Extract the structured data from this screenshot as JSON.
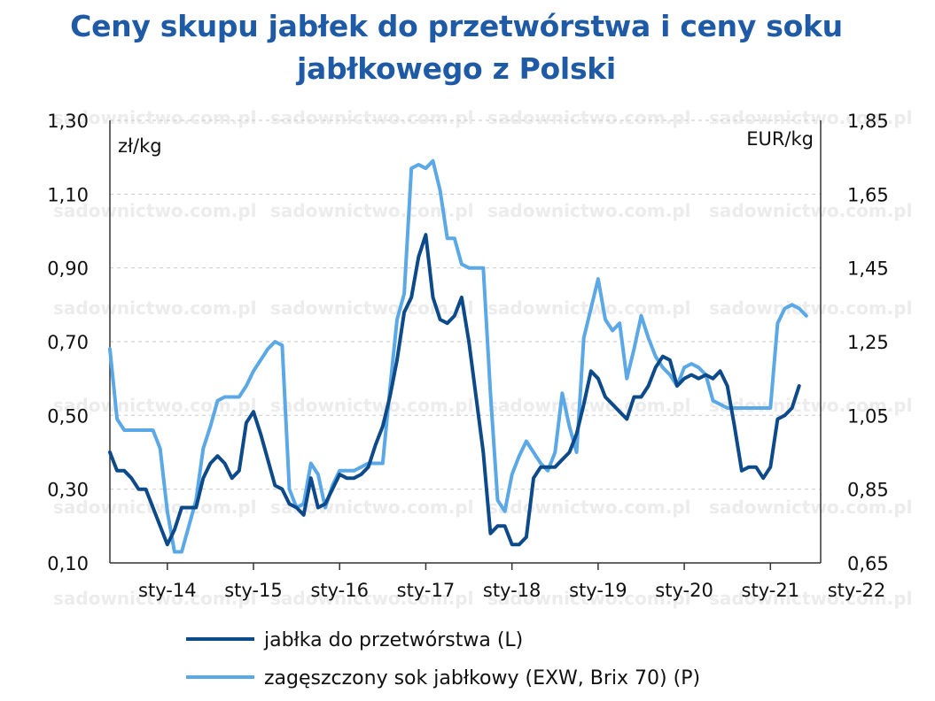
{
  "colors": {
    "title": "#1f5aa6",
    "apples": "#0d4a8a",
    "juice": "#5aa8e6",
    "axis": "#333333"
  },
  "chart_data": {
    "type": "line",
    "title": "Ceny skupu jabłek do przetwórstwa i ceny soku jabłkowego z Polski",
    "title_lines": [
      "Ceny skupu jabłek do przetwórstwa i ceny soku",
      "jabłkowego z Polski"
    ],
    "left_unit": "zł/kg",
    "right_unit": "EUR/kg",
    "ylim_left": [
      0.1,
      1.3
    ],
    "ylim_right": [
      0.65,
      1.85
    ],
    "y_ticks_left": [
      "1,30",
      "1,10",
      "0,90",
      "0,70",
      "0,50",
      "0,30",
      "0,10"
    ],
    "y_ticks_right": [
      "1,85",
      "1,65",
      "1,45",
      "1,25",
      "1,05",
      "0,85",
      "0,65"
    ],
    "x_ticks": [
      "sty-14",
      "sty-15",
      "sty-16",
      "sty-17",
      "sty-18",
      "sty-19",
      "sty-20",
      "sty-21",
      "sty-22"
    ],
    "x_start": 0,
    "x_end": 99,
    "grid": "horizontal dashed",
    "legend_position": "bottom",
    "watermark": "sadownictwo.com.pl",
    "series": [
      {
        "name": "jabłka do przetwórstwa (L)",
        "axis": "left",
        "points": [
          [
            0,
            0.4
          ],
          [
            1,
            0.35
          ],
          [
            2,
            0.35
          ],
          [
            3,
            0.33
          ],
          [
            4,
            0.3
          ],
          [
            5,
            0.3
          ],
          [
            6,
            0.25
          ],
          [
            7,
            0.2
          ],
          [
            8,
            0.15
          ],
          [
            9,
            0.19
          ],
          [
            10,
            0.25
          ],
          [
            11,
            0.25
          ],
          [
            12,
            0.25
          ],
          [
            13,
            0.33
          ],
          [
            14,
            0.37
          ],
          [
            15,
            0.39
          ],
          [
            16,
            0.37
          ],
          [
            17,
            0.33
          ],
          [
            18,
            0.35
          ],
          [
            19,
            0.48
          ],
          [
            20,
            0.51
          ],
          [
            21,
            0.45
          ],
          [
            22,
            0.38
          ],
          [
            23,
            0.31
          ],
          [
            24,
            0.3
          ],
          [
            25,
            0.26
          ],
          [
            26,
            0.25
          ],
          [
            27,
            0.23
          ],
          [
            28,
            0.33
          ],
          [
            29,
            0.25
          ],
          [
            30,
            0.26
          ],
          [
            31,
            0.3
          ],
          [
            32,
            0.34
          ],
          [
            33,
            0.33
          ],
          [
            34,
            0.33
          ],
          [
            35,
            0.34
          ],
          [
            36,
            0.36
          ],
          [
            37,
            0.42
          ],
          [
            38,
            0.47
          ],
          [
            39,
            0.55
          ],
          [
            40,
            0.65
          ],
          [
            41,
            0.78
          ],
          [
            42,
            0.82
          ],
          [
            43,
            0.93
          ],
          [
            44,
            0.99
          ],
          [
            45,
            0.82
          ],
          [
            46,
            0.76
          ],
          [
            47,
            0.75
          ],
          [
            48,
            0.77
          ],
          [
            49,
            0.82
          ],
          [
            50,
            0.7
          ],
          [
            51,
            0.55
          ],
          [
            52,
            0.4
          ],
          [
            53,
            0.18
          ],
          [
            54,
            0.2
          ],
          [
            55,
            0.2
          ],
          [
            56,
            0.15
          ],
          [
            57,
            0.15
          ],
          [
            58,
            0.17
          ],
          [
            59,
            0.33
          ],
          [
            60,
            0.36
          ],
          [
            61,
            0.36
          ],
          [
            62,
            0.36
          ],
          [
            63,
            0.38
          ],
          [
            64,
            0.4
          ],
          [
            65,
            0.45
          ],
          [
            66,
            0.53
          ],
          [
            67,
            0.62
          ],
          [
            68,
            0.6
          ],
          [
            69,
            0.55
          ],
          [
            70,
            0.53
          ],
          [
            71,
            0.51
          ],
          [
            72,
            0.49
          ],
          [
            73,
            0.55
          ],
          [
            74,
            0.55
          ],
          [
            75,
            0.58
          ],
          [
            76,
            0.63
          ],
          [
            77,
            0.66
          ],
          [
            78,
            0.65
          ],
          [
            79,
            0.58
          ],
          [
            80,
            0.6
          ],
          [
            81,
            0.61
          ],
          [
            82,
            0.6
          ],
          [
            83,
            0.61
          ],
          [
            84,
            0.6
          ],
          [
            85,
            0.62
          ],
          [
            86,
            0.58
          ],
          [
            87,
            0.47
          ],
          [
            88,
            0.35
          ],
          [
            89,
            0.36
          ],
          [
            90,
            0.36
          ],
          [
            91,
            0.33
          ],
          [
            92,
            0.36
          ],
          [
            93,
            0.49
          ],
          [
            94,
            0.5
          ],
          [
            95,
            0.52
          ],
          [
            96,
            0.58
          ]
        ]
      },
      {
        "name": "zagęszczony sok jabłkowy (EXW, Brix 70) (P)",
        "axis": "right",
        "points": [
          [
            0,
            1.23
          ],
          [
            1,
            1.04
          ],
          [
            2,
            1.01
          ],
          [
            3,
            1.01
          ],
          [
            4,
            1.01
          ],
          [
            5,
            1.01
          ],
          [
            6,
            1.01
          ],
          [
            7,
            0.96
          ],
          [
            8,
            0.79
          ],
          [
            9,
            0.68
          ],
          [
            10,
            0.68
          ],
          [
            11,
            0.75
          ],
          [
            12,
            0.82
          ],
          [
            13,
            0.96
          ],
          [
            14,
            1.02
          ],
          [
            15,
            1.09
          ],
          [
            16,
            1.1
          ],
          [
            17,
            1.1
          ],
          [
            18,
            1.1
          ],
          [
            19,
            1.13
          ],
          [
            20,
            1.17
          ],
          [
            21,
            1.2
          ],
          [
            22,
            1.23
          ],
          [
            23,
            1.25
          ],
          [
            24,
            1.24
          ],
          [
            25,
            0.85
          ],
          [
            26,
            0.8
          ],
          [
            27,
            0.81
          ],
          [
            28,
            0.92
          ],
          [
            29,
            0.89
          ],
          [
            30,
            0.8
          ],
          [
            31,
            0.86
          ],
          [
            32,
            0.9
          ],
          [
            33,
            0.9
          ],
          [
            34,
            0.9
          ],
          [
            35,
            0.91
          ],
          [
            36,
            0.92
          ],
          [
            37,
            0.92
          ],
          [
            38,
            0.92
          ],
          [
            39,
            1.12
          ],
          [
            40,
            1.31
          ],
          [
            41,
            1.38
          ],
          [
            42,
            1.72
          ],
          [
            43,
            1.73
          ],
          [
            44,
            1.72
          ],
          [
            45,
            1.74
          ],
          [
            46,
            1.66
          ],
          [
            47,
            1.53
          ],
          [
            48,
            1.53
          ],
          [
            49,
            1.46
          ],
          [
            50,
            1.45
          ],
          [
            51,
            1.45
          ],
          [
            52,
            1.45
          ],
          [
            53,
            1.11
          ],
          [
            54,
            0.82
          ],
          [
            55,
            0.79
          ],
          [
            56,
            0.89
          ],
          [
            57,
            0.94
          ],
          [
            58,
            0.98
          ],
          [
            59,
            0.95
          ],
          [
            60,
            0.92
          ],
          [
            61,
            0.9
          ],
          [
            62,
            0.95
          ],
          [
            63,
            1.11
          ],
          [
            64,
            1.02
          ],
          [
            65,
            0.95
          ],
          [
            66,
            1.26
          ],
          [
            67,
            1.34
          ],
          [
            68,
            1.42
          ],
          [
            69,
            1.31
          ],
          [
            70,
            1.28
          ],
          [
            71,
            1.3
          ],
          [
            72,
            1.15
          ],
          [
            73,
            1.23
          ],
          [
            74,
            1.32
          ],
          [
            75,
            1.26
          ],
          [
            76,
            1.21
          ],
          [
            77,
            1.18
          ],
          [
            78,
            1.16
          ],
          [
            79,
            1.13
          ],
          [
            80,
            1.18
          ],
          [
            81,
            1.19
          ],
          [
            82,
            1.18
          ],
          [
            83,
            1.16
          ],
          [
            84,
            1.09
          ],
          [
            85,
            1.08
          ],
          [
            86,
            1.07
          ],
          [
            87,
            1.07
          ],
          [
            88,
            1.07
          ],
          [
            89,
            1.07
          ],
          [
            90,
            1.07
          ],
          [
            91,
            1.07
          ],
          [
            92,
            1.07
          ],
          [
            93,
            1.3
          ],
          [
            94,
            1.34
          ],
          [
            95,
            1.35
          ],
          [
            96,
            1.34
          ],
          [
            97,
            1.32
          ]
        ]
      }
    ]
  },
  "legend": [
    {
      "label": "jabłka do przetwórstwa (L)"
    },
    {
      "label": "zagęszczony sok jabłkowy (EXW, Brix 70) (P)"
    }
  ]
}
